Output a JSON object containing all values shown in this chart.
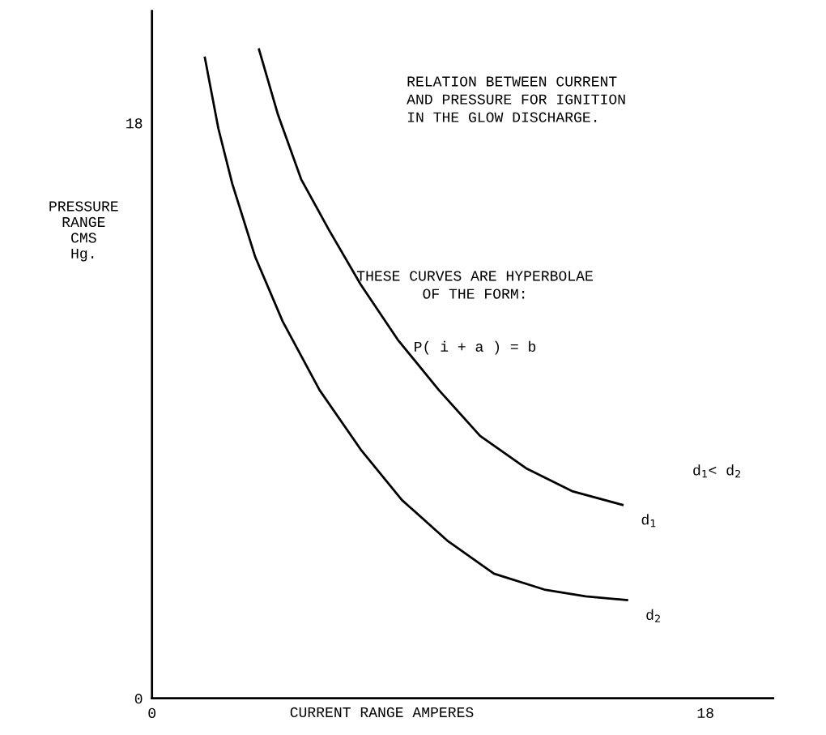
{
  "chart_data": {
    "type": "line",
    "title": "RELATION BETWEEN CURRENT\nAND PRESSURE FOR IGNITION\nIN THE GLOW DISCHARGE.",
    "xlabel": "CURRENT RANGE AMPERES",
    "ylabel": "PRESSURE\nRANGE\nCMS\nHg.",
    "xlim": [
      0,
      20.2
    ],
    "ylim": [
      0,
      21.5
    ],
    "xticks": [
      0,
      18
    ],
    "yticks": [
      0,
      18
    ],
    "grid": false,
    "legend": false,
    "marker": "none",
    "line_style": "solid",
    "series": [
      {
        "name": "d$_{1}$",
        "color": "#000000",
        "x": [
          3.48,
          4.1,
          4.85,
          5.75,
          6.79,
          7.99,
          9.33,
          10.67,
          12.16,
          13.66,
          15.3
        ],
        "values": [
          20.3,
          18.25,
          16.24,
          14.66,
          12.94,
          11.22,
          9.64,
          8.21,
          7.2,
          6.48,
          6.05
        ]
      },
      {
        "name": "d$_{2}$",
        "color": "#000000",
        "x": [
          1.72,
          2.16,
          2.61,
          3.36,
          4.25,
          5.45,
          6.79,
          8.13,
          9.63,
          11.12,
          12.76,
          14.1,
          15.45
        ],
        "values": [
          20.04,
          17.82,
          16.1,
          13.8,
          11.79,
          9.64,
          7.78,
          6.2,
          4.91,
          3.9,
          3.4,
          3.19,
          3.07
        ]
      }
    ],
    "annotations": [
      "THESE CURVES ARE HYPERBOLAE\nOF THE FORM:",
      "P( i + a ) = b",
      "d$_{1}$< d$_{2}$"
    ]
  }
}
